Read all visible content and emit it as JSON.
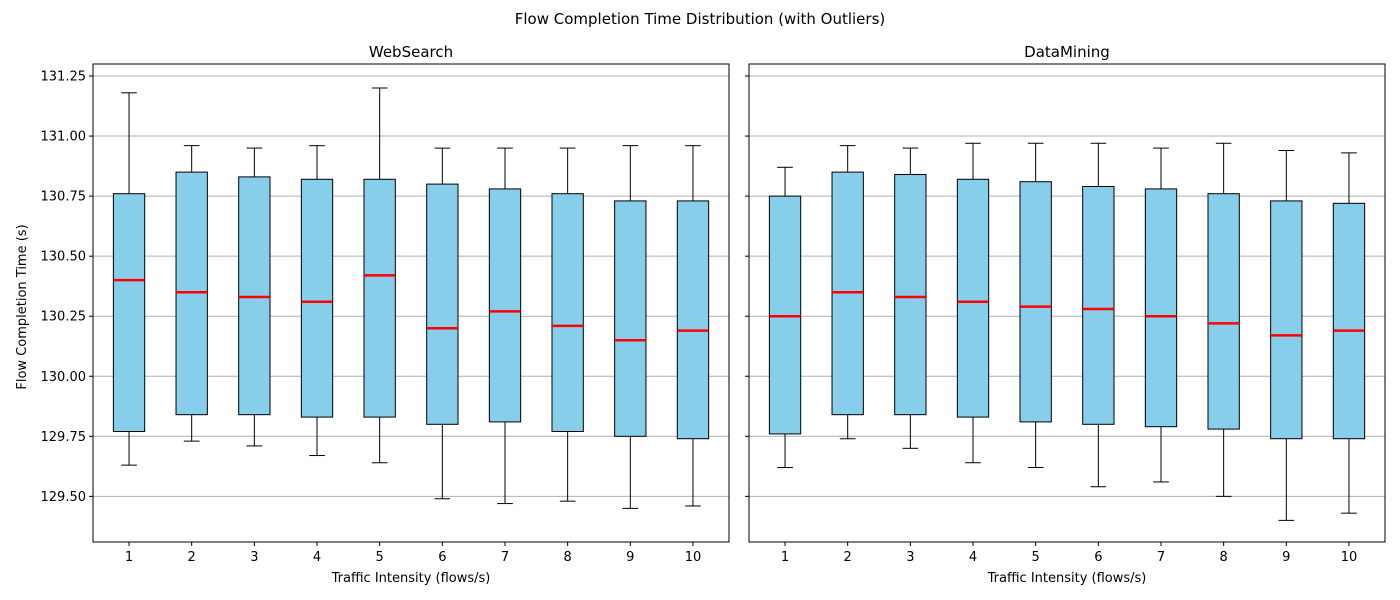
{
  "figure": {
    "suptitle": "Flow Completion Time Distribution (with Outliers)"
  },
  "colors": {
    "box_fill": "#87ceeb",
    "median": "#ff0000",
    "grid": "#b0b0b0",
    "line": "#000000"
  },
  "chart_data": [
    {
      "type": "box",
      "title": "WebSearch",
      "xlabel": "Traffic Intensity (flows/s)",
      "ylabel": "Flow Completion Time (s)",
      "ylim": [
        129.31,
        131.3
      ],
      "yticks": [
        129.5,
        129.75,
        130.0,
        130.25,
        130.5,
        130.75,
        131.0,
        131.25
      ],
      "ytick_labels": [
        "129.50",
        "129.75",
        "130.00",
        "130.25",
        "130.50",
        "130.75",
        "131.00",
        "131.25"
      ],
      "grid": "y",
      "categories": [
        "1",
        "2",
        "3",
        "4",
        "5",
        "6",
        "7",
        "8",
        "9",
        "10"
      ],
      "boxes": [
        {
          "whislo": 129.63,
          "q1": 129.77,
          "med": 130.4,
          "q3": 130.76,
          "whishi": 131.18
        },
        {
          "whislo": 129.73,
          "q1": 129.84,
          "med": 130.35,
          "q3": 130.85,
          "whishi": 130.96
        },
        {
          "whislo": 129.71,
          "q1": 129.84,
          "med": 130.33,
          "q3": 130.83,
          "whishi": 130.95
        },
        {
          "whislo": 129.67,
          "q1": 129.83,
          "med": 130.31,
          "q3": 130.82,
          "whishi": 130.96
        },
        {
          "whislo": 129.64,
          "q1": 129.83,
          "med": 130.42,
          "q3": 130.82,
          "whishi": 131.2
        },
        {
          "whislo": 129.49,
          "q1": 129.8,
          "med": 130.2,
          "q3": 130.8,
          "whishi": 130.95
        },
        {
          "whislo": 129.47,
          "q1": 129.81,
          "med": 130.27,
          "q3": 130.78,
          "whishi": 130.95
        },
        {
          "whislo": 129.48,
          "q1": 129.77,
          "med": 130.21,
          "q3": 130.76,
          "whishi": 130.95
        },
        {
          "whislo": 129.45,
          "q1": 129.75,
          "med": 130.15,
          "q3": 130.73,
          "whishi": 130.96
        },
        {
          "whislo": 129.46,
          "q1": 129.74,
          "med": 130.19,
          "q3": 130.73,
          "whishi": 130.96
        }
      ]
    },
    {
      "type": "box",
      "title": "DataMining",
      "xlabel": "Traffic Intensity (flows/s)",
      "ylabel": "",
      "ylim": [
        129.31,
        131.3
      ],
      "yticks": [
        129.5,
        129.75,
        130.0,
        130.25,
        130.5,
        130.75,
        131.0,
        131.25
      ],
      "ytick_labels": [],
      "grid": "y",
      "categories": [
        "1",
        "2",
        "3",
        "4",
        "5",
        "6",
        "7",
        "8",
        "9",
        "10"
      ],
      "boxes": [
        {
          "whislo": 129.62,
          "q1": 129.76,
          "med": 130.25,
          "q3": 130.75,
          "whishi": 130.87
        },
        {
          "whislo": 129.74,
          "q1": 129.84,
          "med": 130.35,
          "q3": 130.85,
          "whishi": 130.96
        },
        {
          "whislo": 129.7,
          "q1": 129.84,
          "med": 130.33,
          "q3": 130.84,
          "whishi": 130.95
        },
        {
          "whislo": 129.64,
          "q1": 129.83,
          "med": 130.31,
          "q3": 130.82,
          "whishi": 130.97
        },
        {
          "whislo": 129.62,
          "q1": 129.81,
          "med": 130.29,
          "q3": 130.81,
          "whishi": 130.97
        },
        {
          "whislo": 129.54,
          "q1": 129.8,
          "med": 130.28,
          "q3": 130.79,
          "whishi": 130.97
        },
        {
          "whislo": 129.56,
          "q1": 129.79,
          "med": 130.25,
          "q3": 130.78,
          "whishi": 130.95
        },
        {
          "whislo": 129.5,
          "q1": 129.78,
          "med": 130.22,
          "q3": 130.76,
          "whishi": 130.97
        },
        {
          "whislo": 129.4,
          "q1": 129.74,
          "med": 130.17,
          "q3": 130.73,
          "whishi": 130.94
        },
        {
          "whislo": 129.43,
          "q1": 129.74,
          "med": 130.19,
          "q3": 130.72,
          "whishi": 130.93
        }
      ]
    }
  ]
}
